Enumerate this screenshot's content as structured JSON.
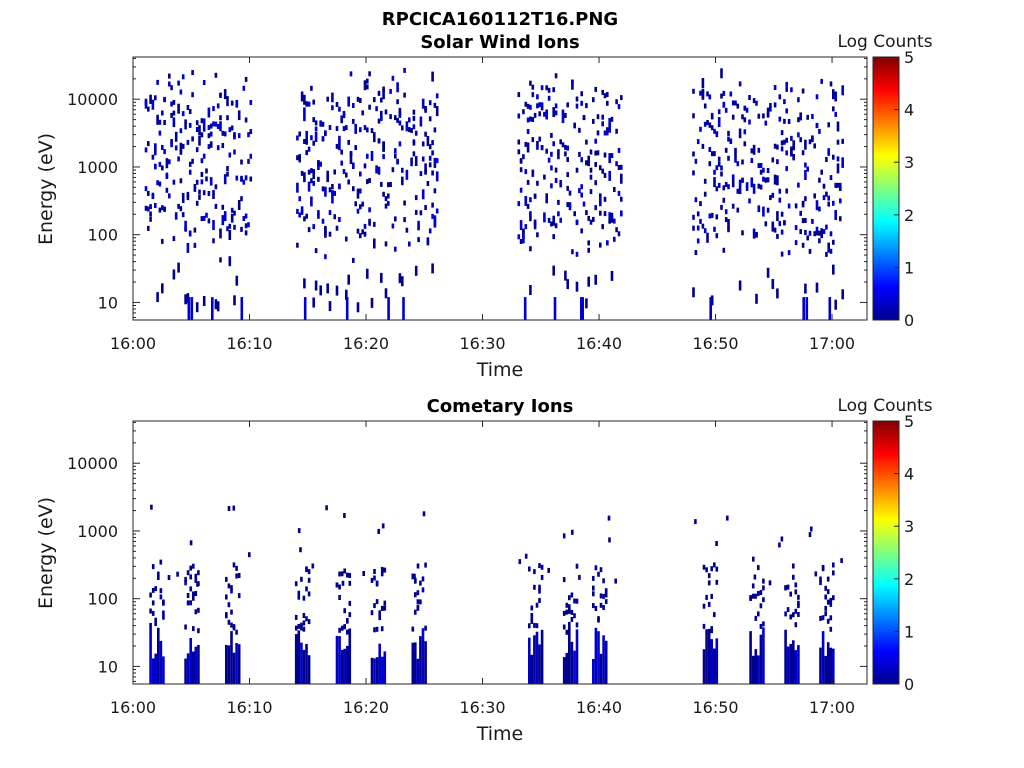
{
  "figure": {
    "filename": "RPCICA160112T16.PNG"
  },
  "colors": {
    "background": "#ffffff",
    "axis": "#262626",
    "colormap": [
      "#00008f",
      "#0000ff",
      "#0080ff",
      "#00ffff",
      "#80ff80",
      "#ffff00",
      "#ff8000",
      "#ff0000",
      "#800000"
    ]
  },
  "chart_data": [
    {
      "type": "heatmap",
      "title": "Solar Wind Ions",
      "xlabel": "Time",
      "ylabel": "Energy (eV)",
      "y_scale": "log",
      "ylim": [
        5.5,
        42000
      ],
      "xlim": [
        "16:00",
        "17:03"
      ],
      "x_ticks": [
        "16:00",
        "16:10",
        "16:20",
        "16:30",
        "16:40",
        "16:50",
        "17:00"
      ],
      "y_ticks": [
        {
          "value": 10,
          "label": "10"
        },
        {
          "value": 100,
          "label": "100"
        },
        {
          "value": 1000,
          "label": "1000"
        },
        {
          "value": 10000,
          "label": "10000"
        }
      ],
      "colorbar": {
        "label": "Log Counts",
        "range": [
          0,
          5
        ],
        "ticks": [
          "0",
          "1",
          "2",
          "3",
          "4",
          "5"
        ]
      },
      "grid": false,
      "data_approx": {
        "note_bursts_minutes": [
          [
            1,
            10
          ],
          [
            14,
            26
          ],
          [
            33,
            42
          ],
          [
            48,
            61
          ]
        ],
        "energy_range_eV": [
          6,
          30000
        ],
        "log_counts_range": [
          0,
          1
        ]
      }
    },
    {
      "type": "heatmap",
      "title": "Cometary Ions",
      "xlabel": "Time",
      "ylabel": "Energy (eV)",
      "y_scale": "log",
      "ylim": [
        5.5,
        42000
      ],
      "xlim": [
        "16:00",
        "17:03"
      ],
      "x_ticks": [
        "16:00",
        "16:10",
        "16:20",
        "16:30",
        "16:40",
        "16:50",
        "17:00"
      ],
      "y_ticks": [
        {
          "value": 10,
          "label": "10"
        },
        {
          "value": 100,
          "label": "100"
        },
        {
          "value": 1000,
          "label": "1000"
        },
        {
          "value": 10000,
          "label": "10000"
        }
      ],
      "colorbar": {
        "label": "Log Counts",
        "range": [
          0,
          5
        ],
        "ticks": [
          "0",
          "1",
          "2",
          "3",
          "4",
          "5"
        ]
      },
      "grid": false,
      "data_approx": {
        "burst_minutes": [
          2,
          5,
          8.5,
          14.5,
          18,
          21,
          24.5,
          34.5,
          37.5,
          40,
          49.5,
          53.5,
          56.5,
          59.5
        ],
        "energy_range_eV": [
          6,
          3000
        ],
        "log_counts_range": [
          0,
          1.3
        ]
      }
    }
  ]
}
